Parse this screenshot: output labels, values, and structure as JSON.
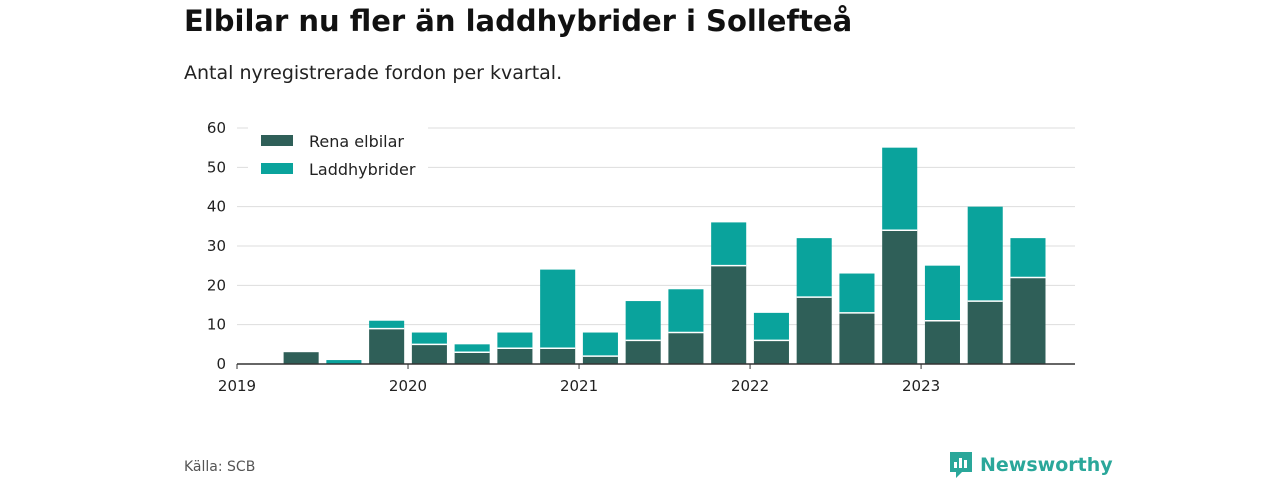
{
  "header": {
    "title": "Elbilar nu fler än laddhybrider i Sollefteå",
    "subtitle": "Antal nyregistrerade fordon per kvartal."
  },
  "footer": {
    "source": "Källa: SCB",
    "brand": "Newsworthy"
  },
  "colors": {
    "rena_elbilar": "#2f5f58",
    "laddhybrider": "#0aa39c",
    "grid": "#dddddd",
    "axis": "#333333",
    "brand": "#2aa79a"
  },
  "chart_data": {
    "type": "bar",
    "stacked": true,
    "title": "Elbilar nu fler än laddhybrider i Sollefteå",
    "subtitle": "Antal nyregistrerade fordon per kvartal.",
    "xlabel": "",
    "ylabel": "",
    "ylim": [
      0,
      60
    ],
    "yticks": [
      0,
      10,
      20,
      30,
      40,
      50,
      60
    ],
    "grid": true,
    "legend_position": "top-left",
    "categories": [
      "2019 Q1",
      "2019 Q2",
      "2019 Q3",
      "2019 Q4",
      "2020 Q1",
      "2020 Q2",
      "2020 Q3",
      "2020 Q4",
      "2021 Q1",
      "2021 Q2",
      "2021 Q3",
      "2021 Q4",
      "2022 Q1",
      "2022 Q2",
      "2022 Q3",
      "2022 Q4",
      "2023 Q1",
      "2023 Q2",
      "2023 Q3"
    ],
    "x_tick_labels": [
      "2019",
      "2020",
      "2021",
      "2022",
      "2023"
    ],
    "series": [
      {
        "name": "Rena elbilar",
        "values": [
          0,
          3,
          0,
          9,
          5,
          3,
          4,
          4,
          2,
          6,
          8,
          25,
          6,
          17,
          13,
          34,
          11,
          16,
          22
        ]
      },
      {
        "name": "Laddhybrider",
        "values": [
          0,
          0,
          1,
          2,
          3,
          2,
          4,
          20,
          6,
          10,
          11,
          11,
          7,
          15,
          10,
          21,
          14,
          24,
          10
        ]
      }
    ]
  }
}
